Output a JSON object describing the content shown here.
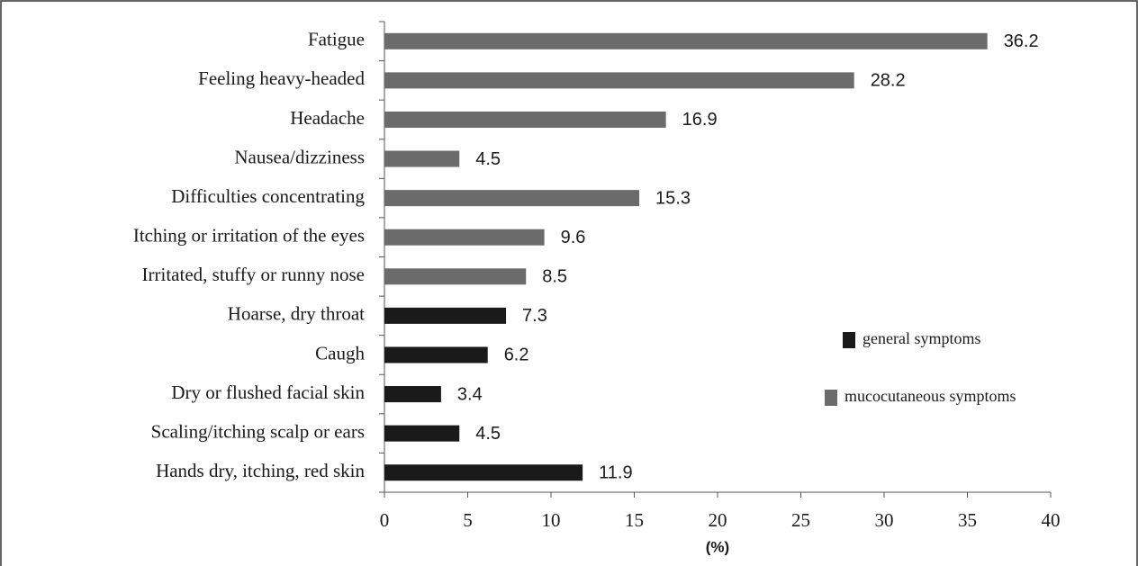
{
  "chart_data": {
    "type": "bar",
    "orientation": "horizontal",
    "categories": [
      "Fatigue",
      "Feeling heavy-headed",
      "Headache",
      "Nausea/dizziness",
      "Difficulties concentrating",
      "Itching or irritation of the eyes",
      "Irritated, stuffy or runny nose",
      "Hoarse, dry throat",
      "Caugh",
      "Dry or flushed facial skin",
      "Scaling/itching scalp or ears",
      "Hands dry, itching, red skin"
    ],
    "series": [
      {
        "name": "general symptoms",
        "color": "#1a1a1a",
        "values": [
          null,
          null,
          null,
          null,
          null,
          null,
          null,
          7.3,
          6.2,
          3.4,
          4.5,
          11.9
        ]
      },
      {
        "name": "mucocutaneous symptoms",
        "color": "#6b6b6b",
        "values": [
          36.2,
          28.2,
          16.9,
          4.5,
          15.3,
          9.6,
          8.5,
          null,
          null,
          null,
          null,
          null
        ]
      }
    ],
    "xlabel": "(%)",
    "xlim": [
      0,
      40
    ],
    "xticks": [
      0,
      5,
      10,
      15,
      20,
      25,
      30,
      35,
      40
    ],
    "legend": "right"
  }
}
